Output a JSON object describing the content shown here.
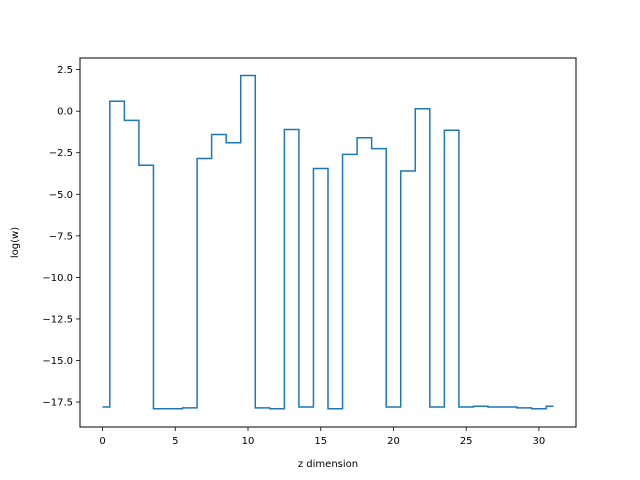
{
  "chart_data": {
    "type": "line",
    "drawstyle": "steps-mid",
    "xlabel": "z dimension",
    "ylabel": "log(w)",
    "xlim": [
      -1.55,
      32.55
    ],
    "ylim": [
      -19.0,
      3.2
    ],
    "xticks": [
      0,
      5,
      10,
      15,
      20,
      25,
      30
    ],
    "xtick_labels": [
      "0",
      "5",
      "10",
      "15",
      "20",
      "25",
      "30"
    ],
    "yticks": [
      2.5,
      0.0,
      -2.5,
      -5.0,
      -7.5,
      -10.0,
      -12.5,
      -15.0,
      -17.5
    ],
    "ytick_labels": [
      "2.5",
      "0.0",
      "−2.5",
      "−5.0",
      "−7.5",
      "−10.0",
      "−12.5",
      "−15.0",
      "−17.5"
    ],
    "grid": false,
    "series": [
      {
        "color": "#1f77b4",
        "x": [
          0,
          1,
          2,
          3,
          4,
          5,
          6,
          7,
          8,
          9,
          10,
          11,
          12,
          13,
          14,
          15,
          16,
          17,
          18,
          19,
          20,
          21,
          22,
          23,
          24,
          25,
          26,
          27,
          28,
          29,
          30,
          31
        ],
        "y": [
          -17.8,
          0.6,
          -0.55,
          -3.25,
          -17.9,
          -17.9,
          -17.85,
          -2.85,
          -1.4,
          -1.9,
          2.15,
          -17.85,
          -17.9,
          -1.1,
          -17.8,
          -3.45,
          -17.9,
          -2.6,
          -1.6,
          -2.25,
          -17.8,
          -3.6,
          0.15,
          -17.8,
          -1.15,
          -17.8,
          -17.75,
          -17.8,
          -17.8,
          -17.85,
          -17.9,
          -17.75
        ]
      }
    ]
  }
}
